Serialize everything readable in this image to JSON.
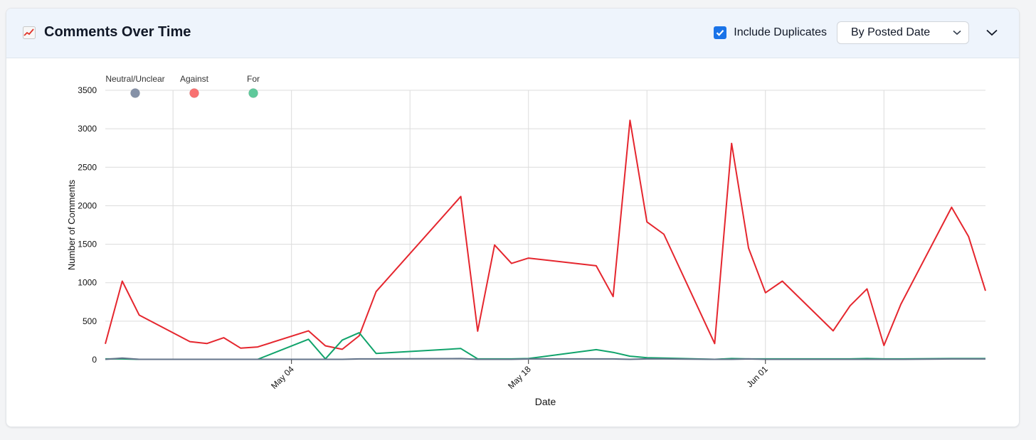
{
  "header": {
    "title": "Comments Over Time",
    "title_icon": "chart-increasing-icon",
    "include_duplicates_label": "Include Duplicates",
    "include_duplicates_checked": true,
    "sort_select_value": "By Posted Date",
    "collapse_icon": "chevron-down-icon"
  },
  "chart_data": {
    "type": "line",
    "xlabel": "Date",
    "ylabel": "Number of Comments",
    "ylim": [
      0,
      3500
    ],
    "yticks": [
      0,
      500,
      1000,
      1500,
      2000,
      2500,
      3000,
      3500
    ],
    "x_tick_labels": [
      "May 04",
      "May 18",
      "Jun 01"
    ],
    "grid": true,
    "legend_position": "top-left",
    "x": [
      "Apr 23",
      "Apr 24",
      "Apr 25",
      "Apr 28",
      "Apr 29",
      "Apr 30",
      "May 01",
      "May 02",
      "May 05",
      "May 06",
      "May 07",
      "May 08",
      "May 09",
      "May 14",
      "May 15",
      "May 16",
      "May 17",
      "May 18",
      "May 22",
      "May 23",
      "May 24",
      "May 25",
      "May 26",
      "May 29",
      "May 30",
      "May 31",
      "Jun 01",
      "Jun 02",
      "Jun 05",
      "Jun 06",
      "Jun 07",
      "Jun 08",
      "Jun 09",
      "Jun 12",
      "Jun 13",
      "Jun 14"
    ],
    "series": [
      {
        "name": "Neutral/Unclear",
        "color": "#64748b",
        "legend_color": "#8591a7",
        "values": [
          5,
          20,
          5,
          5,
          5,
          5,
          5,
          5,
          5,
          5,
          5,
          10,
          10,
          15,
          5,
          5,
          5,
          10,
          10,
          10,
          5,
          10,
          10,
          5,
          5,
          10,
          5,
          5,
          5,
          5,
          5,
          5,
          5,
          10,
          10,
          10
        ]
      },
      {
        "name": "Against",
        "color": "#e5262e",
        "legend_color": "#f87171",
        "values": [
          205,
          1020,
          580,
          235,
          210,
          285,
          150,
          165,
          375,
          180,
          135,
          310,
          885,
          2120,
          370,
          1490,
          1250,
          1320,
          1220,
          820,
          3110,
          1790,
          1630,
          210,
          2810,
          1450,
          870,
          1020,
          375,
          700,
          920,
          185,
          720,
          1980,
          1600,
          895
        ]
      },
      {
        "name": "For",
        "color": "#10a36b",
        "legend_color": "#5fc99b",
        "values": [
          10,
          10,
          5,
          5,
          5,
          5,
          5,
          5,
          265,
          10,
          255,
          350,
          80,
          145,
          10,
          10,
          10,
          15,
          130,
          95,
          45,
          25,
          20,
          5,
          15,
          10,
          10,
          10,
          10,
          10,
          15,
          10,
          10,
          15,
          15,
          15
        ]
      }
    ]
  }
}
